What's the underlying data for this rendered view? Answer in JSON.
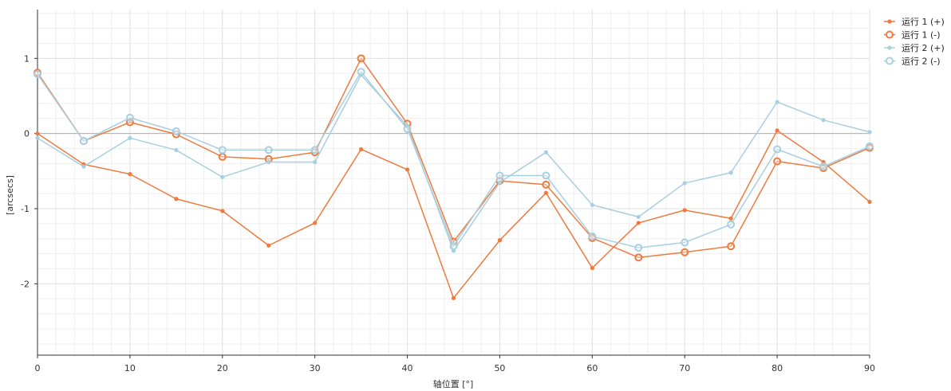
{
  "chart_data": {
    "type": "line",
    "xlabel": "轴位置 [°]",
    "ylabel": "[arcsecs]",
    "xlim": [
      0,
      90
    ],
    "ylim": [
      -2.95,
      1.65
    ],
    "x_ticks": [
      0,
      10,
      20,
      30,
      40,
      50,
      60,
      70,
      80,
      90
    ],
    "y_ticks": [
      -2,
      -1,
      0,
      1
    ],
    "x_minor_step": 2,
    "y_minor_step": 0.2,
    "grid": true,
    "zero_line": true,
    "legend_position": "right-top",
    "x": [
      0,
      5,
      10,
      15,
      20,
      25,
      30,
      35,
      40,
      45,
      50,
      55,
      60,
      65,
      70,
      75,
      80,
      85,
      90
    ],
    "series": [
      {
        "name": "运行 1 (+)",
        "color": "#ee7a3e",
        "marker": "small",
        "values": [
          0.0,
          -0.41,
          -0.54,
          -0.87,
          -1.03,
          -1.49,
          -1.19,
          -0.21,
          -0.48,
          -2.19,
          -1.42,
          -0.79,
          -1.79,
          -1.19,
          -1.02,
          -1.13,
          0.04,
          -0.38,
          -0.91
        ]
      },
      {
        "name": "运行 1 (-)",
        "color": "#ee7a3e",
        "marker": "ring",
        "values": [
          0.81,
          -0.1,
          0.15,
          -0.01,
          -0.31,
          -0.34,
          -0.25,
          1.0,
          0.13,
          -1.44,
          -0.63,
          -0.68,
          -1.39,
          -1.65,
          -1.58,
          -1.5,
          -0.37,
          -0.46,
          -0.19
        ]
      },
      {
        "name": "运行 2 (+)",
        "color": "#a8cfe0",
        "marker": "small",
        "values": [
          -0.06,
          -0.44,
          -0.06,
          -0.22,
          -0.58,
          -0.38,
          -0.38,
          0.78,
          0.1,
          -1.56,
          -0.65,
          -0.25,
          -0.95,
          -1.11,
          -0.66,
          -0.52,
          0.42,
          0.18,
          0.02
        ]
      },
      {
        "name": "运行 2 (-)",
        "color": "#a8cfe0",
        "marker": "ring",
        "values": [
          0.79,
          -0.1,
          0.21,
          0.03,
          -0.22,
          -0.22,
          -0.22,
          0.82,
          0.06,
          -1.5,
          -0.56,
          -0.56,
          -1.37,
          -1.52,
          -1.45,
          -1.21,
          -0.21,
          -0.44,
          -0.17
        ]
      }
    ]
  }
}
